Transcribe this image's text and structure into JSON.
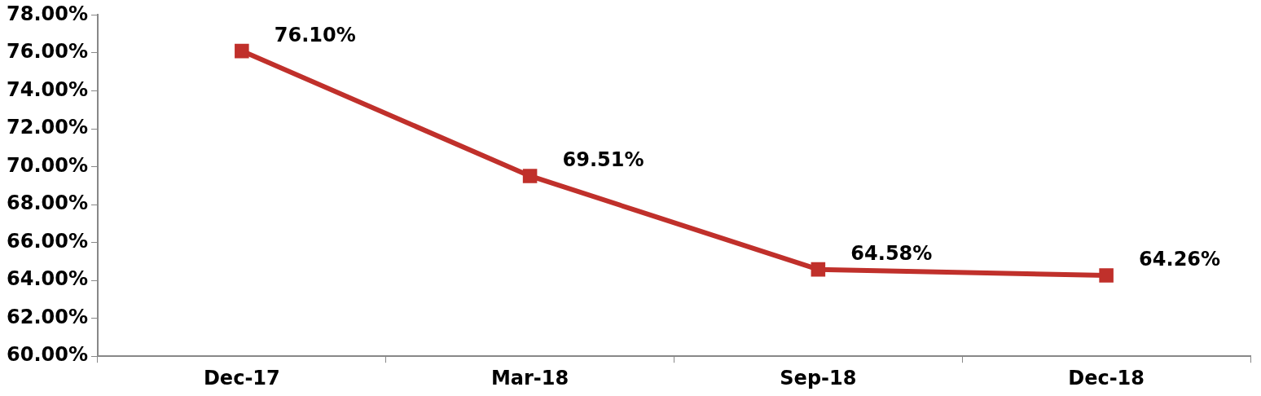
{
  "chart_data": {
    "type": "line",
    "categories": [
      "Dec-17",
      "Mar-18",
      "Sep-18",
      "Dec-18"
    ],
    "series": [
      {
        "color": "#c0302b",
        "values": [
          76.1,
          69.51,
          64.58,
          64.26
        ],
        "value_labels": [
          "76.10%",
          "69.51%",
          "64.58%",
          "64.26%"
        ]
      }
    ],
    "ylim": [
      60,
      78
    ],
    "yticks": [
      {
        "value": 60,
        "label": "60.00%"
      },
      {
        "value": 62,
        "label": "62.00%"
      },
      {
        "value": 64,
        "label": "64.00%"
      },
      {
        "value": 66,
        "label": "66.00%"
      },
      {
        "value": 68,
        "label": "68.00%"
      },
      {
        "value": 70,
        "label": "70.00%"
      },
      {
        "value": 72,
        "label": "72.00%"
      },
      {
        "value": 74,
        "label": "74.00%"
      },
      {
        "value": 76,
        "label": "76.00%"
      },
      {
        "value": 78,
        "label": "78.00%"
      }
    ],
    "grid": false,
    "legend": false,
    "marker": "square",
    "line_style": "solid"
  }
}
